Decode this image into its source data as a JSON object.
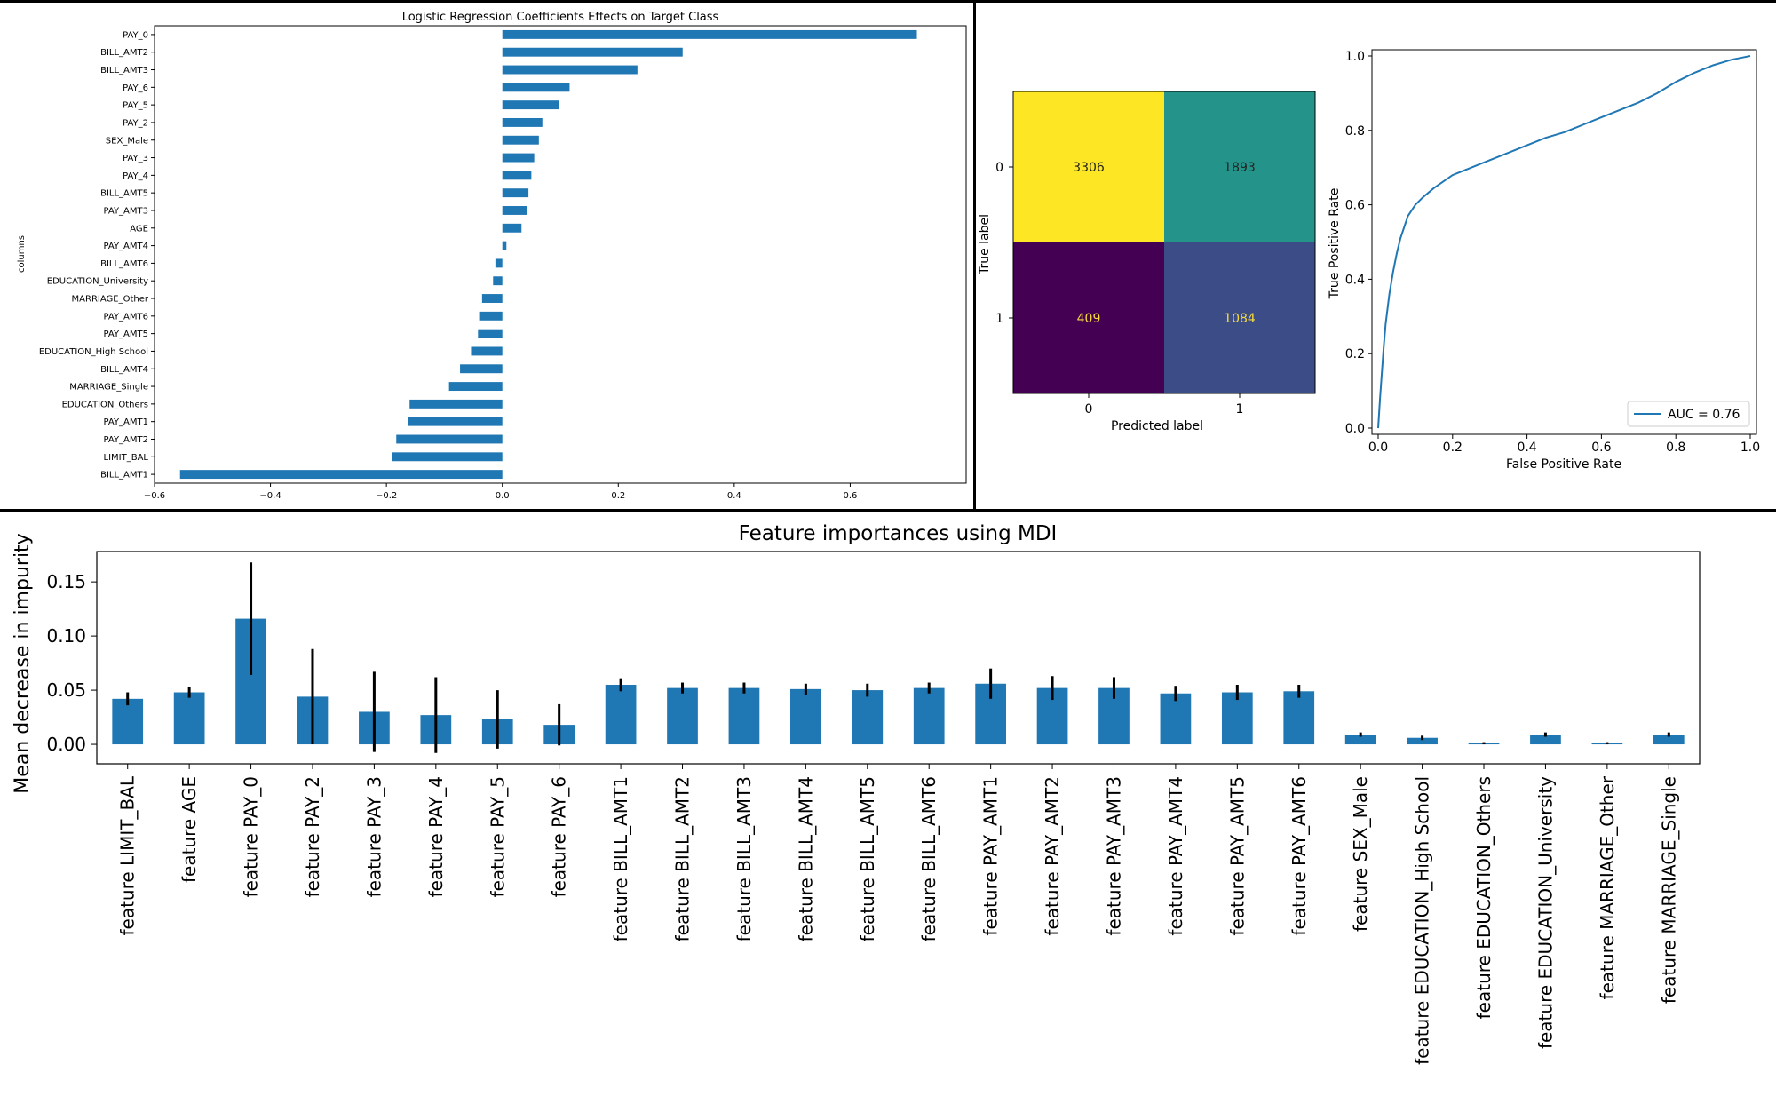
{
  "chart_data": [
    {
      "type": "bar",
      "orientation": "horizontal",
      "title": "Logistic Regression Coefficients Effects on Target Class",
      "xlabel": "",
      "ylabel": "columns",
      "xlim": [
        -0.6,
        0.8
      ],
      "xticks": [
        "-0.6",
        "-0.4",
        "-0.2",
        "0.0",
        "0.2",
        "0.4",
        "0.6"
      ],
      "grid": false,
      "color": "#1f77b4",
      "categories": [
        "PAY_0",
        "BILL_AMT2",
        "BILL_AMT3",
        "PAY_6",
        "PAY_5",
        "PAY_2",
        "SEX_Male",
        "PAY_3",
        "PAY_4",
        "BILL_AMT5",
        "PAY_AMT3",
        "AGE",
        "PAY_AMT4",
        "BILL_AMT6",
        "EDUCATION_University",
        "MARRIAGE_Other",
        "PAY_AMT6",
        "PAY_AMT5",
        "EDUCATION_High School",
        "BILL_AMT4",
        "MARRIAGE_Single",
        "EDUCATION_Others",
        "PAY_AMT1",
        "PAY_AMT2",
        "LIMIT_BAL",
        "BILL_AMT1"
      ],
      "values": [
        0.715,
        0.311,
        0.233,
        0.116,
        0.097,
        0.069,
        0.063,
        0.055,
        0.05,
        0.045,
        0.042,
        0.033,
        0.007,
        -0.012,
        -0.016,
        -0.035,
        -0.04,
        -0.042,
        -0.054,
        -0.073,
        -0.092,
        -0.16,
        -0.162,
        -0.183,
        -0.19,
        -0.556
      ]
    },
    {
      "type": "heatmap",
      "subtype": "confusion_matrix",
      "xlabel": "Predicted label",
      "ylabel": "True label",
      "x_categories": [
        "0",
        "1"
      ],
      "y_categories": [
        "0",
        "1"
      ],
      "matrix": [
        [
          3306,
          1893
        ],
        [
          409,
          1084
        ]
      ],
      "colormap": "viridis"
    },
    {
      "type": "line",
      "subtype": "roc_curve",
      "xlabel": "False Positive Rate",
      "ylabel": "True Positive Rate",
      "xlim": [
        0,
        1
      ],
      "ylim": [
        0,
        1
      ],
      "xticks": [
        "0.0",
        "0.2",
        "0.4",
        "0.6",
        "0.8",
        "1.0"
      ],
      "yticks": [
        "0.0",
        "0.2",
        "0.4",
        "0.6",
        "0.8",
        "1.0"
      ],
      "legend_position": "bottom-right",
      "series": [
        {
          "name": "AUC = 0.76",
          "color": "#1f77b4",
          "x": [
            0,
            0.002,
            0.005,
            0.01,
            0.015,
            0.02,
            0.03,
            0.04,
            0.05,
            0.06,
            0.08,
            0.1,
            0.12,
            0.15,
            0.2,
            0.25,
            0.3,
            0.35,
            0.4,
            0.45,
            0.5,
            0.55,
            0.6,
            0.65,
            0.7,
            0.75,
            0.8,
            0.85,
            0.9,
            0.95,
            0.98,
            1.0
          ],
          "y": [
            0,
            0.03,
            0.08,
            0.15,
            0.22,
            0.28,
            0.36,
            0.42,
            0.47,
            0.51,
            0.57,
            0.6,
            0.62,
            0.645,
            0.68,
            0.7,
            0.72,
            0.74,
            0.76,
            0.78,
            0.795,
            0.815,
            0.835,
            0.855,
            0.875,
            0.9,
            0.93,
            0.955,
            0.975,
            0.99,
            0.996,
            1.0
          ]
        }
      ]
    },
    {
      "type": "bar",
      "title": "Feature importances using MDI",
      "xlabel": "",
      "ylabel": "Mean decrease in impurity",
      "ylim": [
        -0.018,
        0.178
      ],
      "yticks": [
        "0.00",
        "0.05",
        "0.10",
        "0.15"
      ],
      "grid": false,
      "color": "#1f77b4",
      "categories": [
        "feature LIMIT_BAL",
        "feature AGE",
        "feature PAY_0",
        "feature PAY_2",
        "feature PAY_3",
        "feature PAY_4",
        "feature PAY_5",
        "feature PAY_6",
        "feature BILL_AMT1",
        "feature BILL_AMT2",
        "feature BILL_AMT3",
        "feature BILL_AMT4",
        "feature BILL_AMT5",
        "feature BILL_AMT6",
        "feature PAY_AMT1",
        "feature PAY_AMT2",
        "feature PAY_AMT3",
        "feature PAY_AMT4",
        "feature PAY_AMT5",
        "feature PAY_AMT6",
        "feature SEX_Male",
        "feature EDUCATION_High School",
        "feature EDUCATION_Others",
        "feature EDUCATION_University",
        "feature MARRIAGE_Other",
        "feature MARRIAGE_Single"
      ],
      "values": [
        0.042,
        0.048,
        0.116,
        0.044,
        0.03,
        0.027,
        0.023,
        0.018,
        0.055,
        0.052,
        0.052,
        0.051,
        0.05,
        0.052,
        0.056,
        0.052,
        0.052,
        0.047,
        0.048,
        0.049,
        0.009,
        0.006,
        0.001,
        0.009,
        0.001,
        0.009
      ],
      "errors": [
        0.006,
        0.005,
        0.052,
        0.044,
        0.037,
        0.035,
        0.027,
        0.019,
        0.006,
        0.005,
        0.005,
        0.005,
        0.006,
        0.005,
        0.014,
        0.011,
        0.01,
        0.007,
        0.007,
        0.006,
        0.002,
        0.002,
        0.001,
        0.002,
        0.001,
        0.002
      ]
    }
  ]
}
